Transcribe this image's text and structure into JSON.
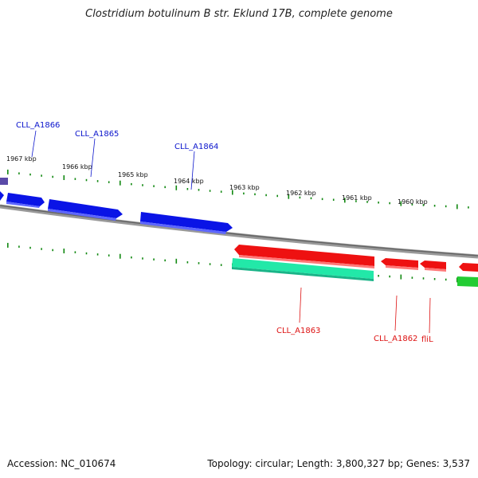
{
  "title": "Clostridium botulinum B str. Eklund 17B, complete genome",
  "footer": {
    "accession": "Accession: NC_010674",
    "summary": "Topology: circular; Length: 3,800,327 bp; Genes: 3,537"
  },
  "colors": {
    "forward_gene": "#0a14e6",
    "reverse_gene": "#ee1111",
    "rrna_like": "#22e8a8",
    "other_feature": "#22cc33",
    "backbone": "#888888",
    "tick": "#118811",
    "forward_label": "#0a14cc",
    "reverse_label": "#dd1111"
  },
  "scale_labels": [
    "1967 kbp",
    "1966 kbp",
    "1965 kbp",
    "1964 kbp",
    "1963 kbp",
    "1962 kbp",
    "1961 kbp",
    "1960 kbp"
  ],
  "genes": {
    "forward": [
      {
        "label": "CLL_A1866"
      },
      {
        "label": "CLL_A1865"
      },
      {
        "label": "CLL_A1864"
      }
    ],
    "reverse": [
      {
        "label": "CLL_A1863"
      },
      {
        "label": "CLL_A1862"
      },
      {
        "label": "fliL"
      }
    ]
  }
}
